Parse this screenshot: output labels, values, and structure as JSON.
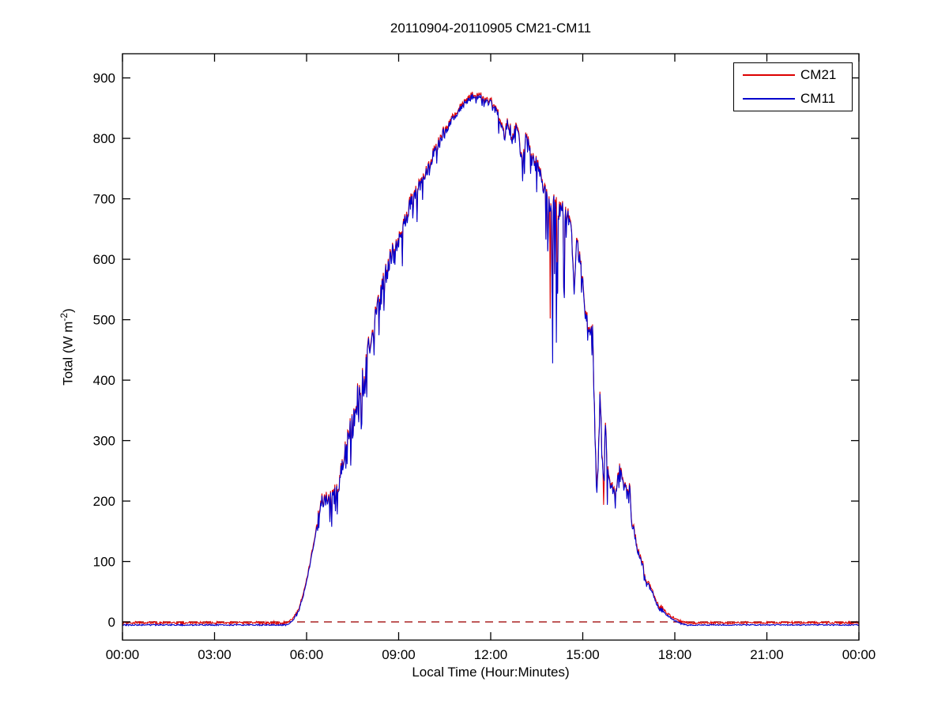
{
  "chart_data": {
    "type": "line",
    "title": "20110904-20110905 CM21-CM11",
    "xlabel": "Local Time (Hour:Minutes)",
    "ylabel": "Total (W m^-2)",
    "xlim": [
      0,
      24
    ],
    "ylim": [
      -30,
      940
    ],
    "grid": false,
    "x_ticks": {
      "values": [
        0,
        3,
        6,
        9,
        12,
        15,
        18,
        21,
        24
      ],
      "labels": [
        "00:00",
        "03:00",
        "06:00",
        "09:00",
        "12:00",
        "15:00",
        "18:00",
        "21:00",
        "00:00"
      ]
    },
    "y_ticks": [
      0,
      100,
      200,
      300,
      400,
      500,
      600,
      700,
      800,
      900
    ],
    "legend": {
      "position": "top-right",
      "entries": [
        {
          "label": "CM21",
          "color": "#dd0000"
        },
        {
          "label": "CM11",
          "color": "#0000cc"
        }
      ]
    },
    "zero_line": {
      "y": 0,
      "style": "dashed",
      "color": "#aa2222"
    },
    "description": "Two nearly-overlapping pyranometer time series (CM21 red, CM11 blue) of total solar irradiance vs local time; night level ~ -5 W m^-2, smooth sunrise ~05:35, cloudy noisy rise, peak ~875 W m^-2 at ~11:30, strong cloud-induced downward spikes after 13:30 (to ~430), collapse near 15:25, ~200-240 plateau until ~16:40, decay to ~ -5 after 18:20; dashed red reference line at 0.",
    "series_generation": {
      "step_hours": 0.02,
      "seed": 42,
      "night_value": -5,
      "cm21_offset": 2,
      "envelope_keypoints": [
        [
          0,
          -5
        ],
        [
          5.35,
          -5
        ],
        [
          5.55,
          2
        ],
        [
          5.75,
          18
        ],
        [
          5.95,
          55
        ],
        [
          6.15,
          105
        ],
        [
          6.35,
          160
        ],
        [
          6.5,
          195
        ],
        [
          6.65,
          205
        ],
        [
          6.8,
          200
        ],
        [
          6.95,
          215
        ],
        [
          7.1,
          240
        ],
        [
          7.25,
          275
        ],
        [
          7.4,
          310
        ],
        [
          7.55,
          340
        ],
        [
          7.7,
          380
        ],
        [
          7.85,
          420
        ],
        [
          8.0,
          450
        ],
        [
          8.15,
          480
        ],
        [
          8.3,
          515
        ],
        [
          8.45,
          545
        ],
        [
          8.6,
          575
        ],
        [
          8.75,
          600
        ],
        [
          8.9,
          622
        ],
        [
          9.05,
          642
        ],
        [
          9.25,
          670
        ],
        [
          9.45,
          695
        ],
        [
          9.65,
          718
        ],
        [
          9.85,
          740
        ],
        [
          10.05,
          762
        ],
        [
          10.25,
          785
        ],
        [
          10.45,
          805
        ],
        [
          10.65,
          822
        ],
        [
          10.85,
          838
        ],
        [
          11.05,
          852
        ],
        [
          11.25,
          862
        ],
        [
          11.45,
          872
        ],
        [
          11.6,
          870
        ],
        [
          11.75,
          866
        ],
        [
          11.9,
          860
        ],
        [
          12.05,
          853
        ],
        [
          12.2,
          845
        ],
        [
          12.35,
          820
        ],
        [
          12.45,
          800
        ],
        [
          12.55,
          828
        ],
        [
          12.7,
          795
        ],
        [
          12.85,
          818
        ],
        [
          13.0,
          772
        ],
        [
          13.15,
          795
        ],
        [
          13.3,
          778
        ],
        [
          13.45,
          760
        ],
        [
          13.6,
          738
        ],
        [
          13.75,
          712
        ],
        [
          13.9,
          695
        ],
        [
          14.05,
          688
        ],
        [
          14.2,
          675
        ],
        [
          14.35,
          678
        ],
        [
          14.5,
          672
        ],
        [
          14.62,
          655
        ],
        [
          14.72,
          550
        ],
        [
          14.8,
          628
        ],
        [
          14.9,
          600
        ],
        [
          15.0,
          562
        ],
        [
          15.1,
          508
        ],
        [
          15.22,
          492
        ],
        [
          15.32,
          482
        ],
        [
          15.42,
          262
        ],
        [
          15.5,
          252
        ],
        [
          15.56,
          388
        ],
        [
          15.62,
          282
        ],
        [
          15.68,
          242
        ],
        [
          15.74,
          318
        ],
        [
          15.8,
          238
        ],
        [
          15.9,
          232
        ],
        [
          16.0,
          216
        ],
        [
          16.1,
          226
        ],
        [
          16.2,
          244
        ],
        [
          16.3,
          234
        ],
        [
          16.4,
          212
        ],
        [
          16.5,
          228
        ],
        [
          16.6,
          176
        ],
        [
          16.7,
          132
        ],
        [
          16.8,
          116
        ],
        [
          16.95,
          96
        ],
        [
          17.05,
          63
        ],
        [
          17.2,
          58
        ],
        [
          17.35,
          36
        ],
        [
          17.5,
          23
        ],
        [
          17.7,
          13
        ],
        [
          17.95,
          4
        ],
        [
          18.2,
          -3
        ],
        [
          18.45,
          -5
        ],
        [
          24,
          -5
        ]
      ],
      "noise_segments": [
        [
          0,
          5.6,
          1.2,
          0,
          0
        ],
        [
          5.6,
          6.35,
          2.5,
          0,
          0
        ],
        [
          6.35,
          7.15,
          14,
          0.22,
          55
        ],
        [
          7.15,
          8.0,
          22,
          0.28,
          85
        ],
        [
          8.0,
          8.8,
          20,
          0.28,
          75
        ],
        [
          8.8,
          9.6,
          16,
          0.22,
          60
        ],
        [
          9.6,
          10.5,
          10,
          0.14,
          38
        ],
        [
          10.5,
          11.9,
          6,
          0.06,
          18
        ],
        [
          11.9,
          12.6,
          8,
          0.1,
          30
        ],
        [
          12.6,
          13.6,
          14,
          0.18,
          55
        ],
        [
          13.6,
          14.4,
          18,
          0.25,
          160
        ],
        [
          14.4,
          15.05,
          13,
          0.15,
          55
        ],
        [
          15.05,
          15.95,
          18,
          0.2,
          50
        ],
        [
          15.95,
          16.72,
          16,
          0.22,
          45
        ],
        [
          16.72,
          17.6,
          4,
          0.08,
          10
        ],
        [
          17.6,
          18.45,
          1.5,
          0,
          0
        ],
        [
          18.45,
          24,
          1,
          0,
          0
        ]
      ],
      "forced_dips_cm11": [
        [
          14.02,
          428
        ],
        [
          14.14,
          462
        ],
        [
          15.44,
          226
        ],
        [
          15.68,
          240
        ]
      ],
      "forced_dips_cm21": [
        [
          13.94,
          502
        ]
      ]
    }
  },
  "labels": {
    "ylabel_main": "Total (W m",
    "ylabel_sup": "-2",
    "ylabel_close": ")"
  }
}
